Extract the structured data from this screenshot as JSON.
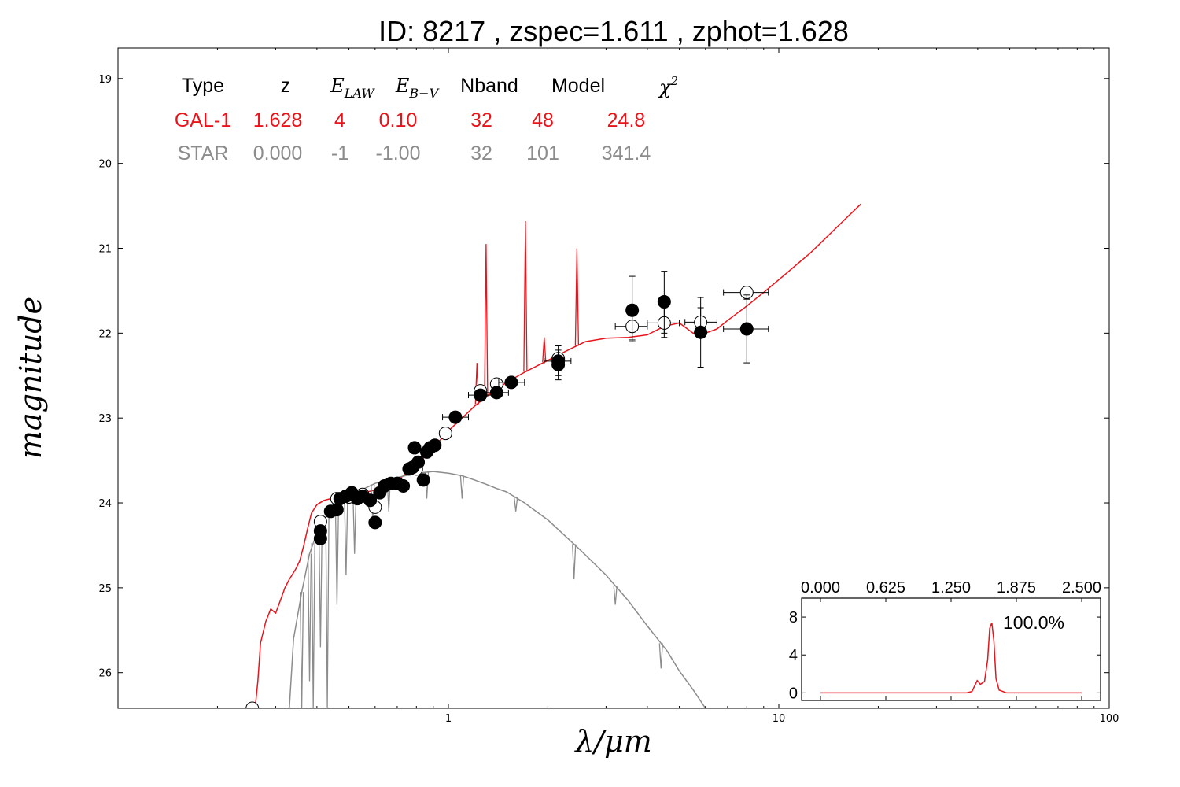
{
  "colors": {
    "galaxy": "#e8141b",
    "star": "#8c8c8c",
    "axis": "#000000",
    "background": "#ffffff"
  },
  "chart_data": {
    "type": "scatter",
    "title": "ID:  8217  , zspec=1.611 , zphot=1.628",
    "xlabel": "λ/μm",
    "ylabel": "magnitude",
    "xscale": "log",
    "xlim": [
      0.1,
      100
    ],
    "ylim": [
      26.42,
      18.64
    ],
    "xticks": [
      {
        "v": 1,
        "label": "1"
      },
      {
        "v": 10,
        "label": "10"
      },
      {
        "v": 100,
        "label": "100"
      }
    ],
    "yticks": [
      {
        "v": 19,
        "label": "19"
      },
      {
        "v": 20,
        "label": "20"
      },
      {
        "v": 21,
        "label": "21"
      },
      {
        "v": 22,
        "label": "22"
      },
      {
        "v": 23,
        "label": "23"
      },
      {
        "v": 24,
        "label": "24"
      },
      {
        "v": 25,
        "label": "25"
      },
      {
        "v": 26,
        "label": "26"
      }
    ],
    "grid": false,
    "fit_table": {
      "headers": [
        "Type",
        "z",
        "E_LAW",
        "E_B−V",
        "Nband",
        "Model",
        "χ²"
      ],
      "rows": [
        {
          "cells": [
            "GAL-1",
            "1.628",
            "4",
            "0.10",
            "32",
            "48",
            "24.8"
          ],
          "color": "#e8141b"
        },
        {
          "cells": [
            "STAR",
            "0.000",
            "-1",
            "-1.00",
            "32",
            "101",
            "341.4"
          ],
          "color": "#8c8c8c"
        }
      ]
    },
    "series": [
      {
        "style": "line",
        "color": "#e8141b",
        "points": [
          [
            0.26,
            26.42
          ],
          [
            0.265,
            26.1
          ],
          [
            0.27,
            25.65
          ],
          [
            0.28,
            25.4
          ],
          [
            0.29,
            25.25
          ],
          [
            0.3,
            25.3
          ],
          [
            0.31,
            25.15
          ],
          [
            0.32,
            25.0
          ],
          [
            0.33,
            24.9
          ],
          [
            0.345,
            24.78
          ],
          [
            0.355,
            24.68
          ],
          [
            0.365,
            24.5
          ],
          [
            0.375,
            24.3
          ],
          [
            0.385,
            24.12
          ],
          [
            0.4,
            24.02
          ],
          [
            0.42,
            23.97
          ],
          [
            0.44,
            23.95
          ],
          [
            0.47,
            23.93
          ],
          [
            0.5,
            23.91
          ],
          [
            0.55,
            23.88
          ],
          [
            0.6,
            23.85
          ],
          [
            0.65,
            23.8
          ],
          [
            0.7,
            23.73
          ],
          [
            0.75,
            23.65
          ],
          [
            0.8,
            23.55
          ],
          [
            0.85,
            23.45
          ],
          [
            0.9,
            23.35
          ],
          [
            0.95,
            23.25
          ],
          [
            1.0,
            23.15
          ],
          [
            1.1,
            23.0
          ],
          [
            1.2,
            22.86
          ],
          [
            1.3,
            22.75
          ],
          [
            1.4,
            22.66
          ],
          [
            1.5,
            22.58
          ],
          [
            1.7,
            22.46
          ],
          [
            2.0,
            22.32
          ],
          [
            2.3,
            22.2
          ],
          [
            2.6,
            22.1
          ],
          [
            3.0,
            22.06
          ],
          [
            3.5,
            22.05
          ],
          [
            4.0,
            22.02
          ],
          [
            4.5,
            21.92
          ],
          [
            5.0,
            21.88
          ],
          [
            5.5,
            22.0
          ],
          [
            6.0,
            22.0
          ],
          [
            6.5,
            21.95
          ],
          [
            7.0,
            21.85
          ],
          [
            8.0,
            21.68
          ],
          [
            9.0,
            21.52
          ],
          [
            10.5,
            21.3
          ],
          [
            12.5,
            21.05
          ],
          [
            15.0,
            20.75
          ],
          [
            17.7,
            20.48
          ]
        ],
        "lines": [
          {
            "x": 1.3,
            "y": 20.95
          },
          {
            "x": 1.71,
            "y": 20.68
          },
          {
            "x": 2.45,
            "y": 21.0
          },
          {
            "x": 1.22,
            "y": 22.35
          },
          {
            "x": 1.95,
            "y": 22.05
          }
        ]
      },
      {
        "style": "line",
        "color": "#8c8c8c",
        "points": [
          [
            0.33,
            26.42
          ],
          [
            0.34,
            25.6
          ],
          [
            0.36,
            25.05
          ],
          [
            0.38,
            24.6
          ],
          [
            0.4,
            24.35
          ],
          [
            0.42,
            24.2
          ],
          [
            0.45,
            24.05
          ],
          [
            0.5,
            23.92
          ],
          [
            0.55,
            23.84
          ],
          [
            0.6,
            23.77
          ],
          [
            0.7,
            23.7
          ],
          [
            0.8,
            23.65
          ],
          [
            0.9,
            23.63
          ],
          [
            1.0,
            23.65
          ],
          [
            1.1,
            23.68
          ],
          [
            1.2,
            23.73
          ],
          [
            1.3,
            23.78
          ],
          [
            1.4,
            23.83
          ],
          [
            1.5,
            23.87
          ],
          [
            1.7,
            24.0
          ],
          [
            2.0,
            24.2
          ],
          [
            2.5,
            24.55
          ],
          [
            3.0,
            24.85
          ],
          [
            3.5,
            25.15
          ],
          [
            4.0,
            25.45
          ],
          [
            4.6,
            25.75
          ],
          [
            5.0,
            25.98
          ],
          [
            5.5,
            26.2
          ],
          [
            6.0,
            26.42
          ]
        ],
        "lines": [
          {
            "x": 0.36,
            "y": 26.42
          },
          {
            "x": 0.38,
            "y": 26.1
          },
          {
            "x": 0.39,
            "y": 26.42
          },
          {
            "x": 0.41,
            "y": 25.7
          },
          {
            "x": 0.43,
            "y": 26.42
          },
          {
            "x": 0.46,
            "y": 25.2
          },
          {
            "x": 0.49,
            "y": 24.85
          },
          {
            "x": 0.52,
            "y": 24.6
          },
          {
            "x": 0.59,
            "y": 24.2
          },
          {
            "x": 0.66,
            "y": 24.1
          },
          {
            "x": 0.86,
            "y": 23.95
          },
          {
            "x": 1.1,
            "y": 23.95
          },
          {
            "x": 1.6,
            "y": 24.1
          },
          {
            "x": 2.4,
            "y": 24.9
          },
          {
            "x": 3.2,
            "y": 25.2
          },
          {
            "x": 4.4,
            "y": 25.95
          }
        ]
      },
      {
        "style": "open-circles",
        "color": "#000000",
        "points": [
          {
            "x": 0.255,
            "y": 26.42
          },
          {
            "x": 0.41,
            "y": 24.22
          },
          {
            "x": 0.46,
            "y": 23.95
          },
          {
            "x": 0.5,
            "y": 23.93
          },
          {
            "x": 0.55,
            "y": 23.9
          },
          {
            "x": 0.6,
            "y": 24.05
          },
          {
            "x": 0.7,
            "y": 23.77
          },
          {
            "x": 0.8,
            "y": 23.6
          },
          {
            "x": 0.98,
            "y": 23.18
          },
          {
            "x": 1.25,
            "y": 22.68
          },
          {
            "x": 1.4,
            "y": 22.6
          },
          {
            "x": 2.15,
            "y": 22.3
          },
          {
            "x": 3.6,
            "y": 21.92,
            "xerr": [
              3.2,
              4.0
            ],
            "yerr": [
              21.75,
              22.1
            ]
          },
          {
            "x": 4.5,
            "y": 21.88,
            "xerr": [
              4.0,
              5.0
            ],
            "yerr": [
              21.7,
              22.05
            ]
          },
          {
            "x": 5.8,
            "y": 21.87,
            "xerr": [
              5.2,
              6.5
            ],
            "yerr": [
              21.7,
              22.05
            ]
          },
          {
            "x": 8.0,
            "y": 21.52,
            "xerr": [
              6.8,
              9.3
            ],
            "yerr": [
              21.45,
              21.6
            ]
          }
        ]
      },
      {
        "style": "filled-circles",
        "color": "#000000",
        "points": [
          {
            "x": 0.41,
            "y": 24.33
          },
          {
            "x": 0.41,
            "y": 24.42
          },
          {
            "x": 0.44,
            "y": 24.1
          },
          {
            "x": 0.46,
            "y": 24.08
          },
          {
            "x": 0.47,
            "y": 23.95
          },
          {
            "x": 0.49,
            "y": 23.92
          },
          {
            "x": 0.51,
            "y": 23.88
          },
          {
            "x": 0.53,
            "y": 23.95
          },
          {
            "x": 0.55,
            "y": 23.92
          },
          {
            "x": 0.58,
            "y": 23.97
          },
          {
            "x": 0.6,
            "y": 24.23
          },
          {
            "x": 0.62,
            "y": 23.88
          },
          {
            "x": 0.64,
            "y": 23.8
          },
          {
            "x": 0.67,
            "y": 23.77
          },
          {
            "x": 0.7,
            "y": 23.77
          },
          {
            "x": 0.73,
            "y": 23.8
          },
          {
            "x": 0.76,
            "y": 23.6
          },
          {
            "x": 0.78,
            "y": 23.58
          },
          {
            "x": 0.79,
            "y": 23.35
          },
          {
            "x": 0.81,
            "y": 23.52
          },
          {
            "x": 0.84,
            "y": 23.73
          },
          {
            "x": 0.86,
            "y": 23.4
          },
          {
            "x": 0.88,
            "y": 23.35
          },
          {
            "x": 0.91,
            "y": 23.32
          },
          {
            "x": 1.05,
            "y": 22.99,
            "xerr": [
              0.96,
              1.15
            ],
            "yerr": [
              22.95,
              23.05
            ]
          },
          {
            "x": 1.25,
            "y": 22.73,
            "xerr": [
              1.15,
              1.38
            ],
            "yerr": [
              22.68,
              22.78
            ]
          },
          {
            "x": 1.4,
            "y": 22.7,
            "xerr": [
              1.28,
              1.52
            ],
            "yerr": [
              22.64,
              22.75
            ]
          },
          {
            "x": 1.55,
            "y": 22.58,
            "xerr": [
              1.42,
              1.7
            ],
            "yerr": [
              22.52,
              22.64
            ]
          },
          {
            "x": 2.15,
            "y": 22.33,
            "xerr": [
              1.95,
              2.35
            ],
            "yerr": [
              22.15,
              22.5
            ]
          },
          {
            "x": 2.15,
            "y": 22.37,
            "yerr": [
              22.2,
              22.55
            ]
          },
          {
            "x": 3.6,
            "y": 21.73,
            "yerr": [
              21.33,
              22.08
            ]
          },
          {
            "x": 4.5,
            "y": 21.63,
            "yerr": [
              21.27,
              22.0
            ]
          },
          {
            "x": 5.8,
            "y": 21.99,
            "yerr": [
              21.58,
              22.4
            ]
          },
          {
            "x": 8.0,
            "y": 21.95,
            "xerr": [
              6.8,
              9.3
            ],
            "yerr": [
              21.55,
              22.35
            ]
          }
        ]
      }
    ],
    "inset": {
      "type": "line",
      "xlim": [
        0.0,
        2.5
      ],
      "ylim": [
        -0.8,
        10
      ],
      "xticks": [
        {
          "v": 0.0,
          "label": "0.000"
        },
        {
          "v": 0.625,
          "label": "0.625"
        },
        {
          "v": 1.25,
          "label": "1.250"
        },
        {
          "v": 1.875,
          "label": "1.875"
        },
        {
          "v": 2.5,
          "label": "2.500"
        }
      ],
      "yticks": [
        {
          "v": 0,
          "label": "0"
        },
        {
          "v": 4,
          "label": "4"
        },
        {
          "v": 8,
          "label": "8"
        }
      ],
      "annotation": "100.0%",
      "color": "#e8141b",
      "points": [
        [
          0.0,
          0.0
        ],
        [
          1.2,
          0.0
        ],
        [
          1.4,
          0.0
        ],
        [
          1.45,
          0.15
        ],
        [
          1.5,
          1.3
        ],
        [
          1.53,
          0.9
        ],
        [
          1.57,
          1.2
        ],
        [
          1.6,
          3.5
        ],
        [
          1.62,
          6.8
        ],
        [
          1.64,
          7.4
        ],
        [
          1.66,
          5.5
        ],
        [
          1.68,
          1.5
        ],
        [
          1.71,
          0.3
        ],
        [
          1.78,
          0.0
        ],
        [
          2.5,
          0.0
        ]
      ]
    }
  }
}
